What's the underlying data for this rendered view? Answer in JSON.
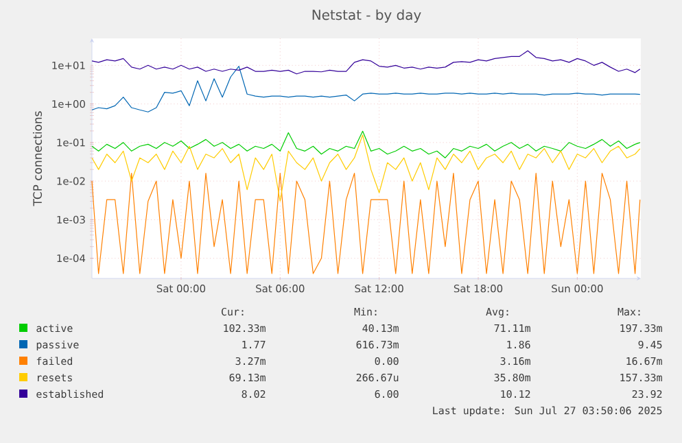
{
  "chart_data": {
    "type": "line",
    "title": "Netstat - by day",
    "ylabel": "TCP connections",
    "log": true,
    "grid": true,
    "legend": "bottom",
    "xlim": [
      "2025-07-25T18:36",
      "2025-07-27T03:51"
    ],
    "ylim": [
      3e-05,
      50
    ],
    "xticks": [
      {
        "value": "2025-07-26T00:00",
        "label": "Sat 00:00"
      },
      {
        "value": "2025-07-26T06:00",
        "label": "Sat 06:00"
      },
      {
        "value": "2025-07-26T12:00",
        "label": "Sat 12:00"
      },
      {
        "value": "2025-07-26T18:00",
        "label": "Sat 18:00"
      },
      {
        "value": "2025-07-27T00:00",
        "label": "Sun 00:00"
      }
    ],
    "yticks": [
      {
        "value": 0.0001,
        "label": "1e-04"
      },
      {
        "value": 0.001,
        "label": "1e-03"
      },
      {
        "value": 0.01,
        "label": "1e-02"
      },
      {
        "value": 0.1,
        "label": "1e-01"
      },
      {
        "value": 1,
        "label": "1e+00"
      },
      {
        "value": 10,
        "label": "1e+01"
      }
    ],
    "x": [
      "2025-07-25T18:36",
      "2025-07-25T19:00",
      "2025-07-25T19:30",
      "2025-07-25T20:00",
      "2025-07-25T20:30",
      "2025-07-25T21:00",
      "2025-07-25T21:30",
      "2025-07-25T22:00",
      "2025-07-25T22:30",
      "2025-07-25T23:00",
      "2025-07-25T23:30",
      "2025-07-26T00:00",
      "2025-07-26T00:30",
      "2025-07-26T01:00",
      "2025-07-26T01:30",
      "2025-07-26T02:00",
      "2025-07-26T02:30",
      "2025-07-26T03:00",
      "2025-07-26T03:30",
      "2025-07-26T04:00",
      "2025-07-26T04:30",
      "2025-07-26T05:00",
      "2025-07-26T05:30",
      "2025-07-26T06:00",
      "2025-07-26T06:30",
      "2025-07-26T07:00",
      "2025-07-26T07:30",
      "2025-07-26T08:00",
      "2025-07-26T08:30",
      "2025-07-26T09:00",
      "2025-07-26T09:30",
      "2025-07-26T10:00",
      "2025-07-26T10:30",
      "2025-07-26T11:00",
      "2025-07-26T11:30",
      "2025-07-26T12:00",
      "2025-07-26T12:30",
      "2025-07-26T13:00",
      "2025-07-26T13:30",
      "2025-07-26T14:00",
      "2025-07-26T14:30",
      "2025-07-26T15:00",
      "2025-07-26T15:30",
      "2025-07-26T16:00",
      "2025-07-26T16:30",
      "2025-07-26T17:00",
      "2025-07-26T17:30",
      "2025-07-26T18:00",
      "2025-07-26T18:30",
      "2025-07-26T19:00",
      "2025-07-26T19:30",
      "2025-07-26T20:00",
      "2025-07-26T20:30",
      "2025-07-26T21:00",
      "2025-07-26T21:30",
      "2025-07-26T22:00",
      "2025-07-26T22:30",
      "2025-07-26T23:00",
      "2025-07-26T23:30",
      "2025-07-27T00:00",
      "2025-07-27T00:30",
      "2025-07-27T01:00",
      "2025-07-27T01:30",
      "2025-07-27T02:00",
      "2025-07-27T02:30",
      "2025-07-27T03:00",
      "2025-07-27T03:30",
      "2025-07-27T03:48"
    ],
    "series": [
      {
        "name": "active",
        "color": "#00cc00",
        "values": [
          0.08,
          0.06,
          0.09,
          0.07,
          0.1,
          0.06,
          0.08,
          0.09,
          0.07,
          0.1,
          0.08,
          0.11,
          0.07,
          0.09,
          0.12,
          0.08,
          0.1,
          0.07,
          0.09,
          0.06,
          0.08,
          0.07,
          0.09,
          0.06,
          0.18,
          0.07,
          0.06,
          0.08,
          0.05,
          0.07,
          0.06,
          0.08,
          0.07,
          0.197,
          0.06,
          0.07,
          0.05,
          0.06,
          0.08,
          0.06,
          0.07,
          0.05,
          0.06,
          0.04,
          0.07,
          0.06,
          0.08,
          0.07,
          0.09,
          0.06,
          0.08,
          0.1,
          0.07,
          0.09,
          0.06,
          0.08,
          0.07,
          0.06,
          0.1,
          0.08,
          0.07,
          0.09,
          0.12,
          0.08,
          0.11,
          0.07,
          0.09,
          0.1
        ]
      },
      {
        "name": "passive",
        "color": "#0066b3",
        "values": [
          0.7,
          0.8,
          0.75,
          0.9,
          1.5,
          0.8,
          0.7,
          0.62,
          0.8,
          2,
          1.9,
          2.2,
          0.9,
          4,
          1.2,
          4.5,
          1.5,
          5,
          9.45,
          1.8,
          1.6,
          1.5,
          1.6,
          1.6,
          1.5,
          1.6,
          1.6,
          1.5,
          1.6,
          1.5,
          1.6,
          1.7,
          1.2,
          1.8,
          1.9,
          1.8,
          1.8,
          1.9,
          1.8,
          1.8,
          1.9,
          1.8,
          1.8,
          1.9,
          1.9,
          1.8,
          1.9,
          1.8,
          1.8,
          1.9,
          1.8,
          1.9,
          1.8,
          1.8,
          1.8,
          1.7,
          1.8,
          1.8,
          1.8,
          1.9,
          1.8,
          1.8,
          1.7,
          1.8,
          1.8,
          1.8,
          1.8,
          1.77
        ]
      },
      {
        "name": "failed",
        "color": "#ff8000",
        "values": [
          0.01,
          4e-05,
          0.0033,
          0.0033,
          4e-05,
          0.016,
          4e-05,
          0.003,
          0.01,
          4e-05,
          0.0033,
          0.0001,
          0.01,
          4e-05,
          0.016,
          0.0002,
          0.0033,
          4e-05,
          0.01,
          4e-05,
          0.0033,
          0.0033,
          4e-05,
          0.016,
          4e-05,
          0.01,
          0.0033,
          4e-05,
          0.0001,
          0.01,
          4e-05,
          0.0033,
          0.016,
          4e-05,
          0.0033,
          0.0033,
          0.0033,
          4e-05,
          0.01,
          4e-05,
          0.0033,
          4e-05,
          0.01,
          0.0002,
          0.016,
          4e-05,
          0.0033,
          0.01,
          4e-05,
          0.0033,
          4e-05,
          0.01,
          0.0033,
          4e-05,
          0.016,
          4e-05,
          0.01,
          0.0002,
          0.0033,
          4e-05,
          0.01,
          4e-05,
          0.016,
          0.0033,
          4e-05,
          0.01,
          4e-05,
          0.0033
        ]
      },
      {
        "name": "resets",
        "color": "#ffcc00",
        "values": [
          0.04,
          0.02,
          0.05,
          0.03,
          0.06,
          0.01,
          0.04,
          0.03,
          0.05,
          0.02,
          0.06,
          0.03,
          0.08,
          0.02,
          0.05,
          0.04,
          0.07,
          0.03,
          0.05,
          0.006,
          0.04,
          0.02,
          0.05,
          0.003,
          0.06,
          0.03,
          0.02,
          0.04,
          0.01,
          0.03,
          0.05,
          0.02,
          0.04,
          0.157,
          0.02,
          0.005,
          0.03,
          0.02,
          0.04,
          0.01,
          0.03,
          0.006,
          0.04,
          0.02,
          0.05,
          0.03,
          0.06,
          0.02,
          0.04,
          0.05,
          0.03,
          0.06,
          0.02,
          0.05,
          0.04,
          0.07,
          0.03,
          0.06,
          0.02,
          0.05,
          0.04,
          0.07,
          0.03,
          0.06,
          0.08,
          0.04,
          0.05,
          0.069
        ]
      },
      {
        "name": "established",
        "color": "#330099",
        "values": [
          13,
          12,
          14,
          13,
          15,
          9,
          8,
          10,
          8,
          9,
          8,
          10,
          8,
          9,
          7,
          8,
          7,
          8,
          7.5,
          9,
          7,
          7,
          7.5,
          7,
          7.5,
          6,
          7,
          7,
          6.8,
          7.5,
          7,
          7,
          12,
          14,
          13,
          9.5,
          9,
          10,
          8.5,
          9,
          8,
          9,
          8.5,
          9,
          12,
          12.5,
          12,
          14,
          13,
          15,
          16,
          17,
          17,
          23.92,
          16,
          15,
          13,
          14,
          12,
          15,
          13,
          10,
          12,
          9,
          7,
          8,
          6.5,
          8.02
        ]
      }
    ],
    "annotations": [
      "Cur:",
      "Min:",
      "Avg:",
      "Max:",
      "102.33m",
      "40.13m",
      "71.11m",
      "197.33m",
      "1.77",
      "616.73m",
      "1.86",
      "9.45",
      "3.27m",
      "0.00",
      "3.16m",
      "16.67m",
      "69.13m",
      "266.67u",
      "35.80m",
      "157.33m",
      "8.02",
      "6.00",
      "10.12",
      "23.92",
      "Last update: Sun Jul 27 03:50:06 2025"
    ]
  }
}
